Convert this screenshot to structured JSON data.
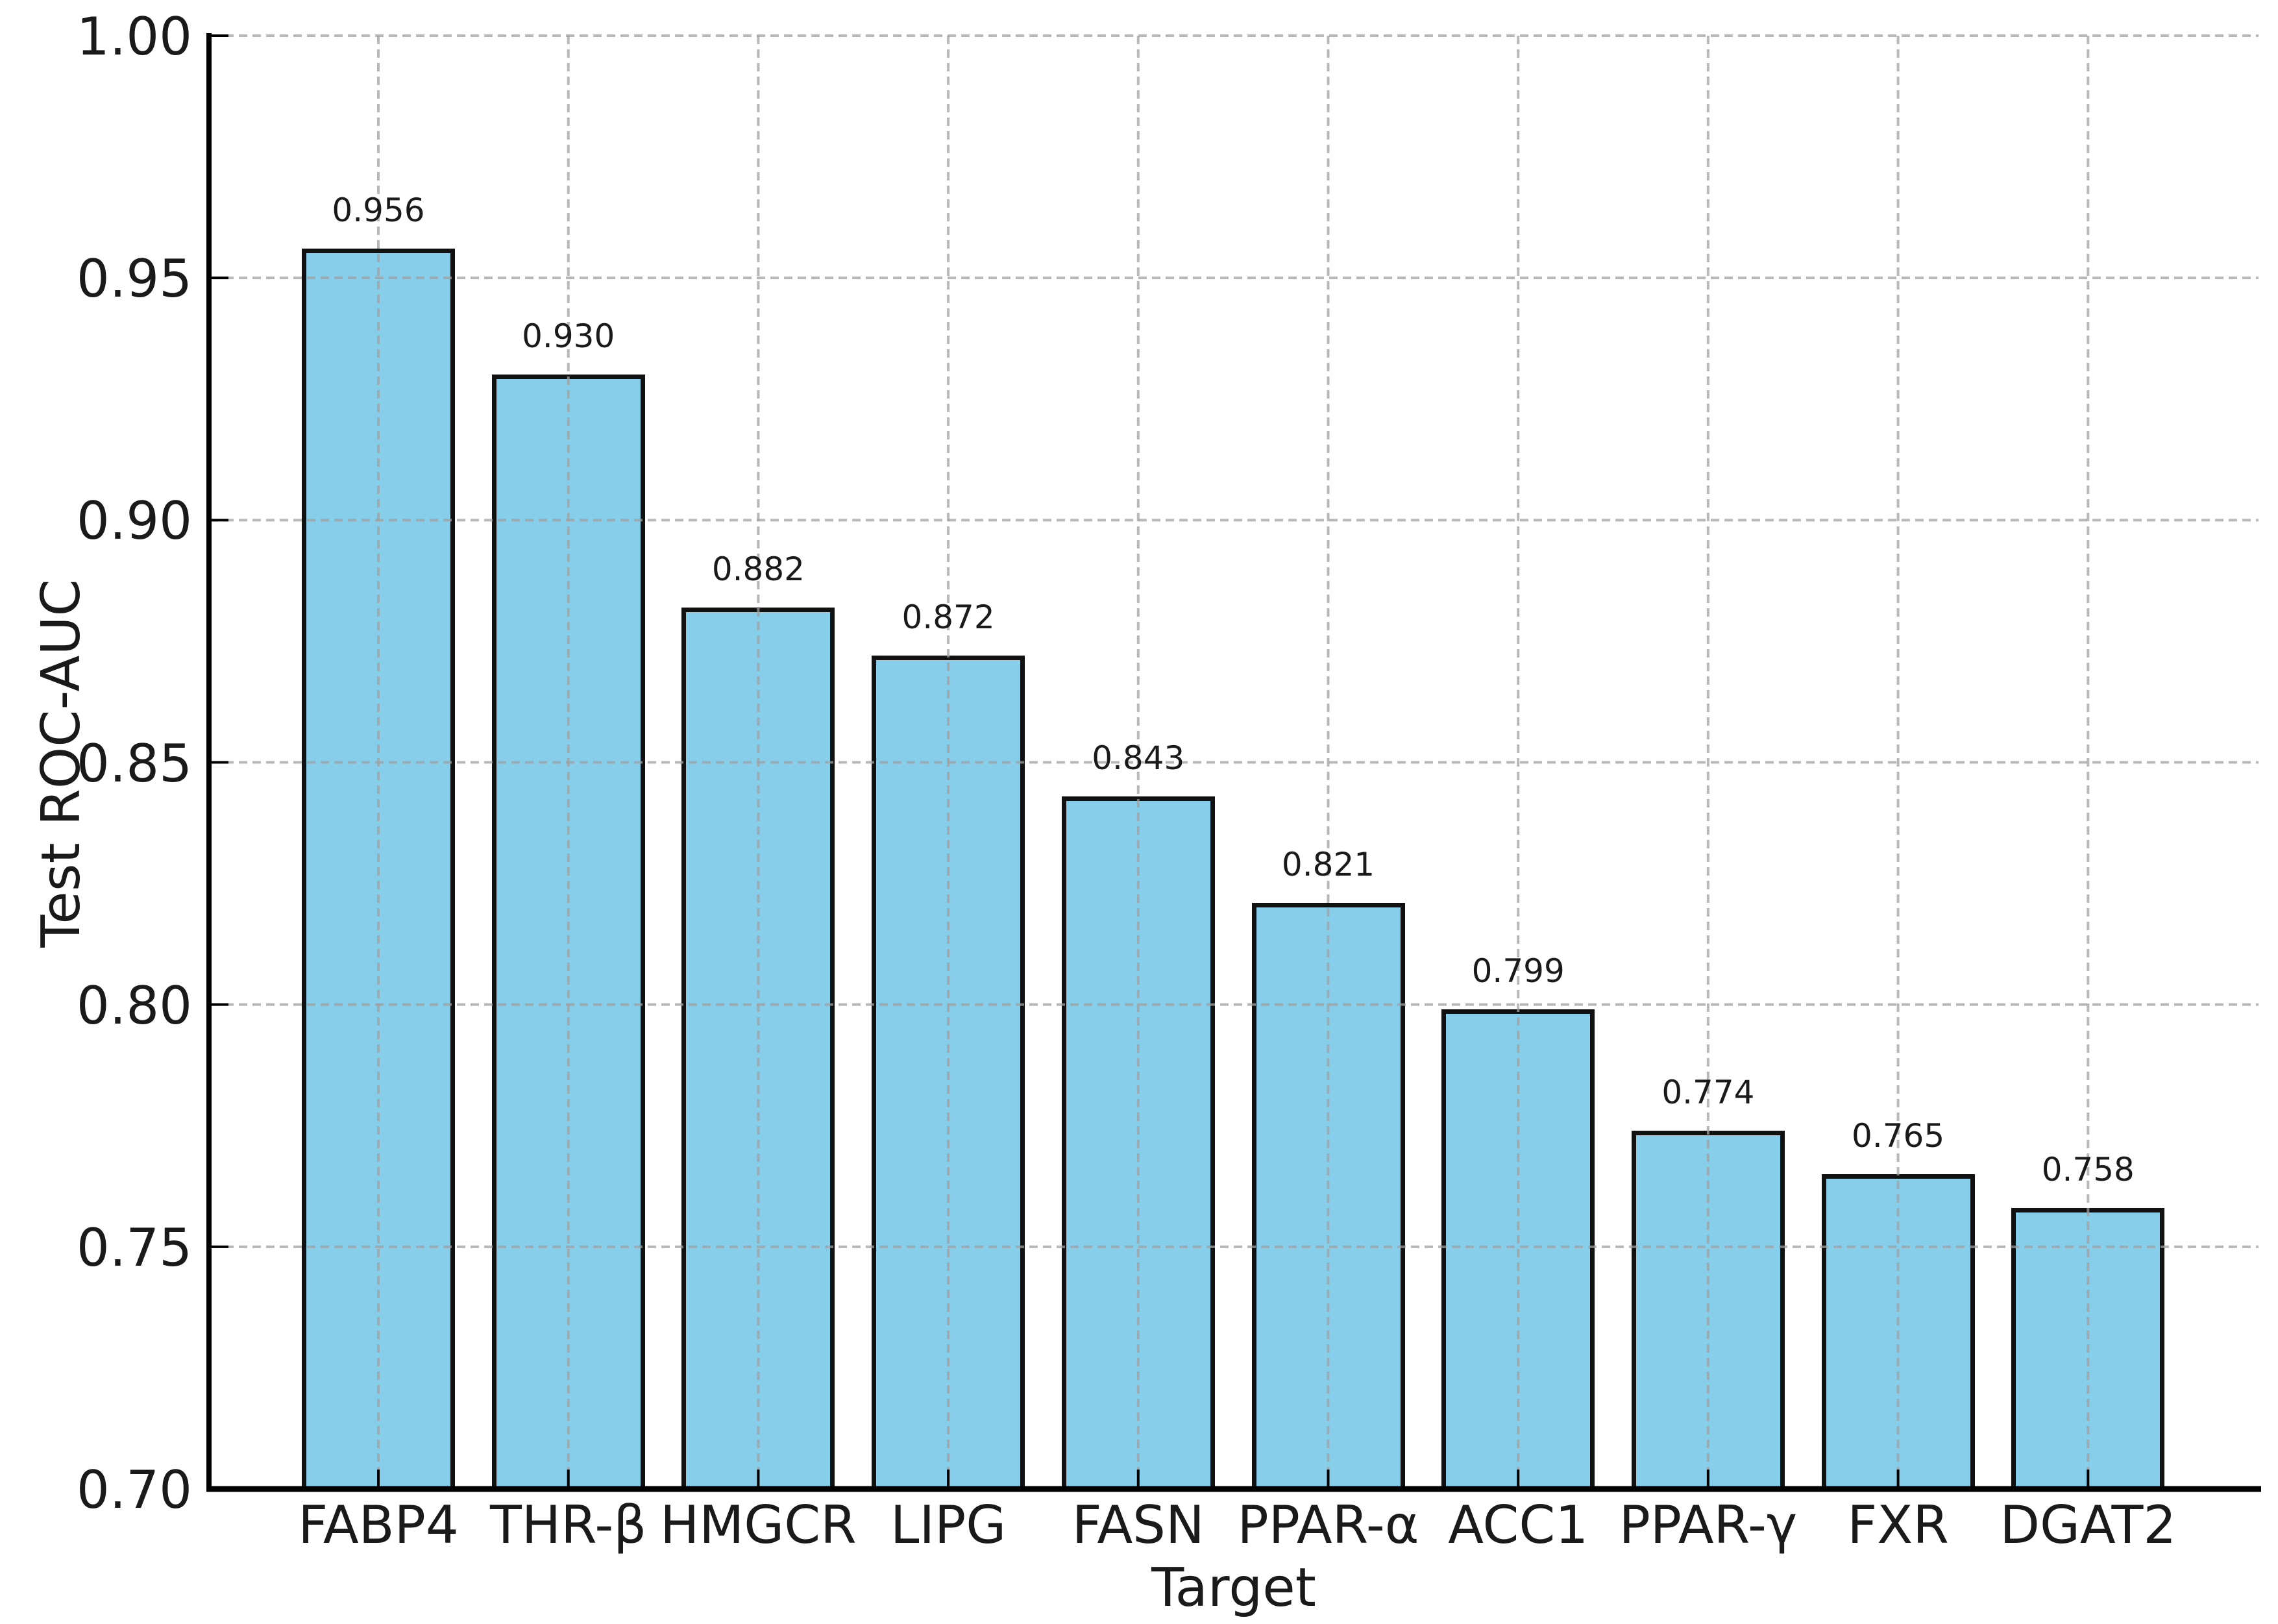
{
  "chart_data": {
    "type": "bar",
    "title": "",
    "xlabel": "Target",
    "ylabel": "Test ROC-AUC",
    "categories": [
      "FABP4",
      "THR-β",
      "HMGCR",
      "LIPG",
      "FASN",
      "PPAR-α",
      "ACC1",
      "PPAR-γ",
      "FXR",
      "DGAT2"
    ],
    "values": [
      0.956,
      0.93,
      0.882,
      0.872,
      0.843,
      0.821,
      0.799,
      0.774,
      0.765,
      0.758
    ],
    "value_labels": [
      "0.956",
      "0.930",
      "0.882",
      "0.872",
      "0.843",
      "0.821",
      "0.799",
      "0.774",
      "0.765",
      "0.758"
    ],
    "ylim": [
      0.7,
      1.0
    ],
    "yticks": [
      0.7,
      0.75,
      0.8,
      0.85,
      0.9,
      0.95,
      1.0
    ],
    "ytick_labels": [
      "0.70",
      "0.75",
      "0.80",
      "0.85",
      "0.90",
      "0.95",
      "1.00"
    ],
    "grid": "dashed",
    "legend": "none",
    "bar_fill": "#87CEEB",
    "bar_edge": "#111111",
    "grid_color_rgba": "rgba(160,160,160,0.75)",
    "spine_color": "#000000",
    "text_color": "#1a1a1a"
  }
}
